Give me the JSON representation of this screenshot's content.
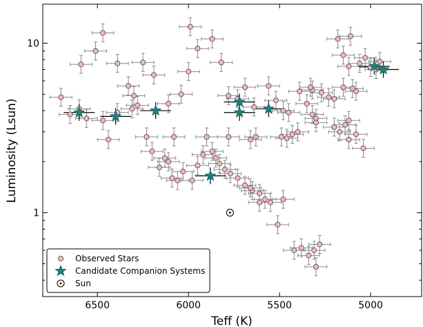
{
  "chart_data": {
    "type": "scatter",
    "xlabel": "Teff (K)",
    "ylabel": "Luminosity (Lsun)",
    "x_reversed": true,
    "y_scale": "log",
    "xlim": [
      6800,
      4720
    ],
    "ylim": [
      0.32,
      17
    ],
    "x_ticks": [
      6500,
      6000,
      5500,
      5000
    ],
    "y_ticks": [
      1,
      10
    ],
    "y_tick_labels": [
      "1",
      "10"
    ],
    "legend": "lower-left",
    "series": [
      {
        "name": "Observed Stars",
        "marker": "circle",
        "color": "#f4b6c2",
        "edge": "#555555",
        "points": [
          {
            "x": 6700,
            "y": 4.8
          },
          {
            "x": 6590,
            "y": 7.5
          },
          {
            "x": 6510,
            "y": 9.0
          },
          {
            "x": 6470,
            "y": 11.5
          },
          {
            "x": 6390,
            "y": 7.6
          },
          {
            "x": 6330,
            "y": 5.6
          },
          {
            "x": 6300,
            "y": 4.9
          },
          {
            "x": 6250,
            "y": 7.7
          },
          {
            "x": 6190,
            "y": 6.5
          },
          {
            "x": 6110,
            "y": 4.4
          },
          {
            "x": 6040,
            "y": 5.0
          },
          {
            "x": 6000,
            "y": 6.8
          },
          {
            "x": 5990,
            "y": 12.5
          },
          {
            "x": 5950,
            "y": 9.3
          },
          {
            "x": 5870,
            "y": 10.6
          },
          {
            "x": 5820,
            "y": 7.7
          },
          {
            "x": 5780,
            "y": 4.9
          },
          {
            "x": 5730,
            "y": 4.7
          },
          {
            "x": 5690,
            "y": 5.5
          },
          {
            "x": 5640,
            "y": 4.2
          },
          {
            "x": 5560,
            "y": 5.6
          },
          {
            "x": 5520,
            "y": 4.6
          },
          {
            "x": 5480,
            "y": 4.0
          },
          {
            "x": 5450,
            "y": 3.9
          },
          {
            "x": 5390,
            "y": 5.2
          },
          {
            "x": 5350,
            "y": 4.4
          },
          {
            "x": 5320,
            "y": 3.8
          },
          {
            "x": 5300,
            "y": 3.6
          },
          {
            "x": 5200,
            "y": 3.2
          },
          {
            "x": 5170,
            "y": 3.0
          },
          {
            "x": 5120,
            "y": 2.7
          },
          {
            "x": 5080,
            "y": 2.9
          },
          {
            "x": 5040,
            "y": 2.4
          },
          {
            "x": 6600,
            "y": 4.1
          },
          {
            "x": 6650,
            "y": 3.8
          },
          {
            "x": 6560,
            "y": 3.6
          },
          {
            "x": 6470,
            "y": 3.5
          },
          {
            "x": 6440,
            "y": 2.7
          },
          {
            "x": 6390,
            "y": 3.9
          },
          {
            "x": 6310,
            "y": 4.1
          },
          {
            "x": 6280,
            "y": 4.3
          },
          {
            "x": 6230,
            "y": 2.8
          },
          {
            "x": 6200,
            "y": 2.3
          },
          {
            "x": 6160,
            "y": 1.85
          },
          {
            "x": 6130,
            "y": 2.1
          },
          {
            "x": 6090,
            "y": 1.6
          },
          {
            "x": 6060,
            "y": 1.55
          },
          {
            "x": 6030,
            "y": 1.75
          },
          {
            "x": 5980,
            "y": 1.55
          },
          {
            "x": 5950,
            "y": 1.9
          },
          {
            "x": 5920,
            "y": 2.2
          },
          {
            "x": 5870,
            "y": 2.3
          },
          {
            "x": 5850,
            "y": 2.1
          },
          {
            "x": 5830,
            "y": 1.95
          },
          {
            "x": 5800,
            "y": 1.8
          },
          {
            "x": 5770,
            "y": 1.7
          },
          {
            "x": 5730,
            "y": 1.6
          },
          {
            "x": 5690,
            "y": 1.45
          },
          {
            "x": 5650,
            "y": 1.35
          },
          {
            "x": 5610,
            "y": 1.3
          },
          {
            "x": 5580,
            "y": 1.2
          },
          {
            "x": 5550,
            "y": 1.15
          },
          {
            "x": 5510,
            "y": 0.85
          },
          {
            "x": 5490,
            "y": 2.8
          },
          {
            "x": 5460,
            "y": 2.75
          },
          {
            "x": 5430,
            "y": 2.9
          },
          {
            "x": 5400,
            "y": 3.0
          },
          {
            "x": 6110,
            "y": 2.0
          },
          {
            "x": 6080,
            "y": 2.8
          },
          {
            "x": 5900,
            "y": 2.8
          },
          {
            "x": 5780,
            "y": 2.8
          },
          {
            "x": 5660,
            "y": 2.7
          },
          {
            "x": 5630,
            "y": 2.8
          },
          {
            "x": 5660,
            "y": 1.4
          },
          {
            "x": 5610,
            "y": 1.15
          },
          {
            "x": 5480,
            "y": 1.2
          },
          {
            "x": 5420,
            "y": 0.6
          },
          {
            "x": 5380,
            "y": 0.62
          },
          {
            "x": 5340,
            "y": 0.56
          },
          {
            "x": 5310,
            "y": 0.6
          },
          {
            "x": 5300,
            "y": 0.48
          },
          {
            "x": 5280,
            "y": 0.65
          },
          {
            "x": 5230,
            "y": 4.8
          },
          {
            "x": 5180,
            "y": 10.6
          },
          {
            "x": 5150,
            "y": 8.5
          },
          {
            "x": 5120,
            "y": 7.3
          },
          {
            "x": 5110,
            "y": 11.0
          },
          {
            "x": 5080,
            "y": 5.2
          },
          {
            "x": 5060,
            "y": 7.6
          },
          {
            "x": 5030,
            "y": 8.2
          },
          {
            "x": 5000,
            "y": 7.2
          },
          {
            "x": 4970,
            "y": 7.0
          },
          {
            "x": 4950,
            "y": 7.8
          },
          {
            "x": 5320,
            "y": 5.3
          },
          {
            "x": 5270,
            "y": 5.1
          },
          {
            "x": 5200,
            "y": 4.7
          },
          {
            "x": 5150,
            "y": 5.5
          },
          {
            "x": 5100,
            "y": 5.4
          },
          {
            "x": 5330,
            "y": 5.5
          },
          {
            "x": 5300,
            "y": 3.4
          },
          {
            "x": 5140,
            "y": 3.3
          },
          {
            "x": 5120,
            "y": 3.5
          }
        ]
      },
      {
        "name": "Candidate Companion Systems",
        "marker": "star",
        "color": "#1f7f7f",
        "edge": "#1a5f5f",
        "points": [
          {
            "x": 6600,
            "y": 3.9
          },
          {
            "x": 6400,
            "y": 3.7
          },
          {
            "x": 6180,
            "y": 4.0
          },
          {
            "x": 5880,
            "y": 1.65
          },
          {
            "x": 5720,
            "y": 4.5
          },
          {
            "x": 5720,
            "y": 3.9
          },
          {
            "x": 5560,
            "y": 4.1
          },
          {
            "x": 4980,
            "y": 7.3
          },
          {
            "x": 4930,
            "y": 7.0
          }
        ]
      },
      {
        "name": "Sun",
        "marker": "sun",
        "color": "#ffffff",
        "edge": "#000000",
        "points": [
          {
            "x": 5772,
            "y": 1.0
          }
        ]
      }
    ]
  }
}
